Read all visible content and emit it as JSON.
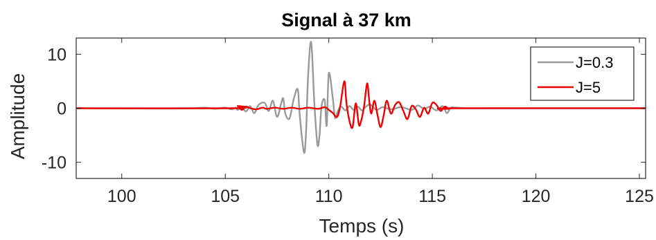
{
  "chart_data": {
    "type": "line",
    "title": "Signal à 37 km",
    "xlabel": "Temps (s)",
    "ylabel": "Amplitude",
    "xlim": [
      97.8,
      125.3
    ],
    "ylim": [
      -13,
      13
    ],
    "xticks": [
      100,
      105,
      110,
      115,
      120,
      125
    ],
    "yticks": [
      10,
      0,
      -10
    ],
    "xtick_labels": [
      "100",
      "105",
      "110",
      "115",
      "120",
      "125"
    ],
    "ytick_labels": [
      "10",
      "0",
      "-10"
    ],
    "grid": false,
    "legend_position": "top-right",
    "series": [
      {
        "name": "J=0.3",
        "color": "#999999",
        "x": [
          97.8,
          103.0,
          104.0,
          104.5,
          105.0,
          105.3,
          105.5,
          105.6,
          105.8,
          106.0,
          106.2,
          106.4,
          106.6,
          106.9,
          107.1,
          107.3,
          107.5,
          107.7,
          107.8,
          107.9,
          108.1,
          108.3,
          108.5,
          108.6,
          108.8,
          108.9,
          109.0,
          109.15,
          109.3,
          109.45,
          109.55,
          109.65,
          109.8,
          109.9,
          110.0,
          110.2,
          110.3,
          110.45,
          110.6,
          110.8,
          111.0,
          111.2,
          111.4,
          111.6,
          111.8,
          112.0,
          112.3,
          112.6,
          113.0,
          113.5,
          114.0,
          114.3,
          114.6,
          114.9,
          115.2,
          115.5,
          115.7,
          115.9,
          116.2,
          116.6,
          117.5,
          125.3
        ],
        "y": [
          0,
          0,
          0.1,
          -0.1,
          0.1,
          -0.2,
          0.1,
          -0.3,
          0.2,
          -0.6,
          0.4,
          -0.9,
          0.6,
          1.0,
          -0.5,
          1.4,
          -1.6,
          0.9,
          1.8,
          -1.0,
          -1.9,
          1.6,
          3.5,
          -1.5,
          -8.2,
          -4.5,
          6.0,
          12.2,
          1.0,
          -6.7,
          -5.0,
          0.4,
          1.5,
          -3.2,
          6.5,
          1.6,
          -1.8,
          -0.4,
          0.3,
          -0.4,
          0.4,
          -0.3,
          0.3,
          -0.4,
          0.3,
          0.7,
          -0.3,
          0.2,
          -0.2,
          0.2,
          -0.3,
          0.5,
          -0.1,
          0.3,
          -0.4,
          0.4,
          -0.9,
          0.1,
          0.1,
          0,
          0,
          0
        ]
      },
      {
        "name": "J=5",
        "color": "#ee0000",
        "x": [
          97.8,
          105.4,
          105.6,
          105.8,
          106.0,
          106.2,
          106.5,
          106.8,
          107.0,
          107.4,
          107.8,
          108.2,
          108.6,
          109.0,
          109.5,
          109.8,
          110.0,
          110.2,
          110.4,
          110.55,
          110.75,
          110.85,
          111.0,
          111.15,
          111.3,
          111.45,
          111.55,
          111.7,
          111.85,
          111.95,
          112.05,
          112.2,
          112.35,
          112.5,
          112.65,
          112.8,
          113.0,
          113.2,
          113.4,
          113.6,
          113.8,
          114.0,
          114.2,
          114.4,
          114.6,
          114.8,
          115.0,
          115.2,
          115.4,
          115.6,
          115.8,
          116.0,
          125.3
        ],
        "y": [
          0,
          0,
          0.4,
          -0.3,
          0.3,
          0,
          -0.2,
          0.1,
          -0.1,
          0.1,
          -0.1,
          0.1,
          -0.1,
          0.1,
          -0.1,
          0.2,
          -0.3,
          -0.9,
          -1.6,
          0.4,
          5.0,
          1.0,
          -2.4,
          -3.5,
          0.9,
          -3.0,
          -2.5,
          0.3,
          4.6,
          1.5,
          -1.0,
          1.4,
          -1.2,
          -3.5,
          -1.3,
          1.4,
          -1.0,
          0.6,
          1.1,
          -0.5,
          -2.0,
          0.4,
          -0.2,
          -1.6,
          0.1,
          -1.0,
          1.0,
          0.6,
          -0.5,
          0.3,
          -0.1,
          0,
          0
        ]
      }
    ]
  }
}
